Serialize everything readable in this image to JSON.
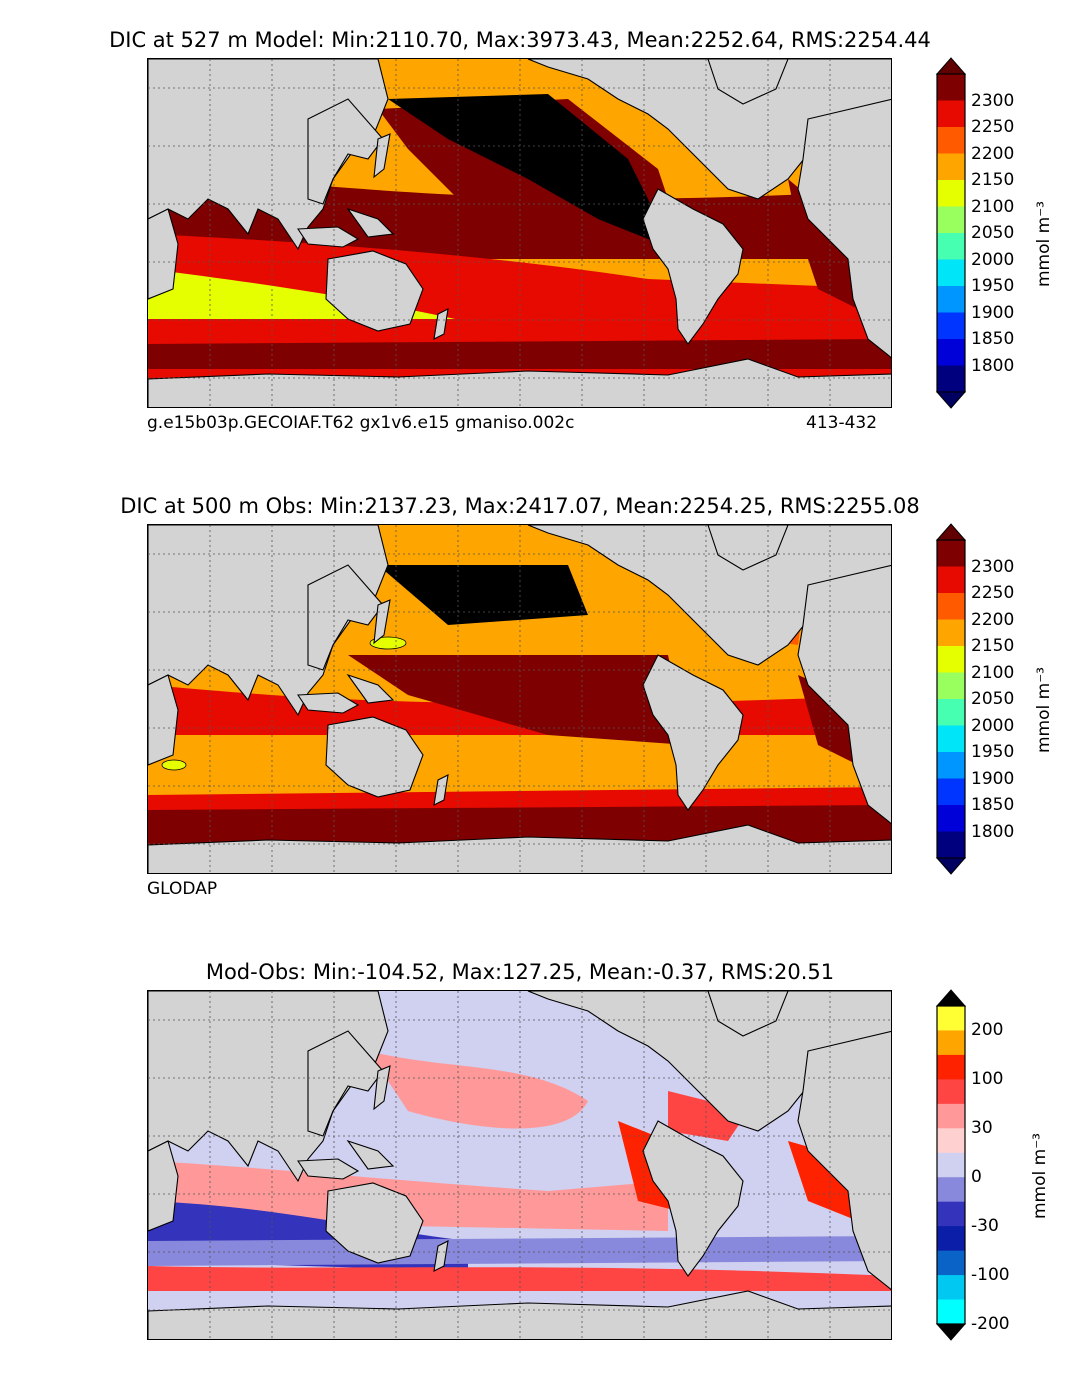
{
  "chart_data": [
    {
      "type": "heatmap",
      "title": "DIC at 527 m Model: Min:2110.70, Max:3973.43, Mean:2252.64, RMS:2254.44",
      "caption_left": "g.e15b03p.GECOIAF.T62 gx1v6.e15 gmaniso.002c",
      "caption_right": "413-432",
      "colorbar": {
        "unit": "mmol m⁻³",
        "levels": [
          "1800",
          "1850",
          "1900",
          "1950",
          "2000",
          "2050",
          "2100",
          "2150",
          "2200",
          "2250",
          "2300"
        ],
        "colors": [
          "#00007f",
          "#0000d8",
          "#0034ff",
          "#0096ff",
          "#00e5f7",
          "#46ffb0",
          "#98ff5e",
          "#e5ff00",
          "#ffa500",
          "#ff5a00",
          "#e60a00",
          "#7f0000"
        ],
        "extend_low": "#000060",
        "extend_high": "#600000"
      },
      "stats": {
        "min": 2110.7,
        "max": 3973.43,
        "mean": 2252.64,
        "rms": 2254.44
      }
    },
    {
      "type": "heatmap",
      "title": "DIC at 500 m Obs: Min:2137.23, Max:2417.07, Mean:2254.25, RMS:2255.08",
      "caption_left": "GLODAP",
      "caption_right": "",
      "colorbar": {
        "unit": "mmol m⁻³",
        "levels": [
          "1800",
          "1850",
          "1900",
          "1950",
          "2000",
          "2050",
          "2100",
          "2150",
          "2200",
          "2250",
          "2300"
        ],
        "colors": [
          "#00007f",
          "#0000d8",
          "#0034ff",
          "#0096ff",
          "#00e5f7",
          "#46ffb0",
          "#98ff5e",
          "#e5ff00",
          "#ffa500",
          "#ff5a00",
          "#e60a00",
          "#7f0000"
        ],
        "extend_low": "#000060",
        "extend_high": "#600000"
      },
      "stats": {
        "min": 2137.23,
        "max": 2417.07,
        "mean": 2254.25,
        "rms": 2255.08
      }
    },
    {
      "type": "heatmap",
      "title": "Mod-Obs: Min:-104.52, Max:127.25, Mean:-0.37, RMS:20.51",
      "caption_left": "",
      "caption_right": "",
      "colorbar": {
        "unit": "mmol m⁻³",
        "levels": [
          "200",
          "100",
          "30",
          "0",
          "-30",
          "-100",
          "-200"
        ],
        "colors": [
          "#ffff33",
          "#ffa500",
          "#ff2200",
          "#ff4444",
          "#ff9999",
          "#ffd0d0",
          "#d0d0f0",
          "#8888dd",
          "#3333bb",
          "#0a1ea8",
          "#0a64c8",
          "#00c8f0",
          "#00ffff"
        ],
        "extend_low": "#000000",
        "extend_high": "#000000"
      },
      "stats": {
        "min": -104.52,
        "max": 127.25,
        "mean": -0.37,
        "rms": 20.51
      }
    }
  ]
}
